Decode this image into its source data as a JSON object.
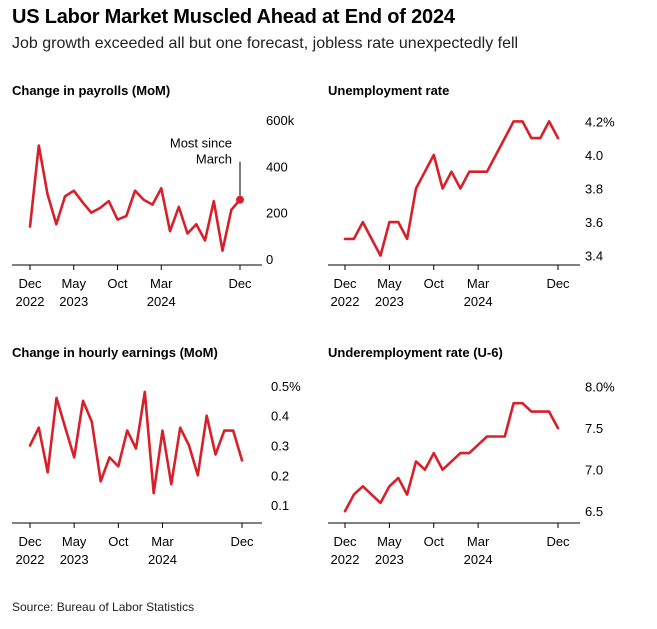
{
  "header": {
    "title": "US Labor Market Muscled Ahead at End of 2024",
    "subtitle": "Job growth exceeded all but one forecast, jobless rate unexpectedly fell"
  },
  "footer": {
    "source": "Source: Bureau of Labor Statistics"
  },
  "colors": {
    "series": "#d7202a",
    "axis": "#000000"
  },
  "chart_data": [
    {
      "type": "line",
      "title": "Change in payrolls (MoM)",
      "x": [
        "2022-12",
        "2023-01",
        "2023-02",
        "2023-03",
        "2023-04",
        "2023-05",
        "2023-06",
        "2023-07",
        "2023-08",
        "2023-09",
        "2023-10",
        "2023-11",
        "2023-12",
        "2024-01",
        "2024-02",
        "2024-03",
        "2024-04",
        "2024-05",
        "2024-06",
        "2024-07",
        "2024-08",
        "2024-09",
        "2024-10",
        "2024-11",
        "2024-12"
      ],
      "series": [
        {
          "values": [
            140,
            490,
            280,
            150,
            270,
            295,
            245,
            200,
            220,
            250,
            170,
            185,
            295,
            255,
            235,
            305,
            120,
            225,
            110,
            150,
            80,
            250,
            36,
            212,
            256
          ]
        }
      ],
      "ylim": [
        0,
        600
      ],
      "yticks": [
        "0",
        "200",
        "400",
        "600k"
      ],
      "ytick_values": [
        0,
        200,
        400,
        600
      ],
      "xtick_labels": [
        [
          "Dec",
          "2022"
        ],
        [
          "May",
          "2023"
        ],
        [
          "Oct",
          ""
        ],
        [
          "Mar",
          "2024"
        ],
        [
          "Dec",
          ""
        ]
      ],
      "xtick_index": [
        0,
        5,
        10,
        15,
        24
      ],
      "annotation": {
        "lines": [
          "Most since",
          "March"
        ],
        "index": 24
      }
    },
    {
      "type": "line",
      "title": "Unemployment rate",
      "x": [
        "2022-12",
        "2023-01",
        "2023-02",
        "2023-03",
        "2023-04",
        "2023-05",
        "2023-06",
        "2023-07",
        "2023-08",
        "2023-09",
        "2023-10",
        "2023-11",
        "2023-12",
        "2024-01",
        "2024-02",
        "2024-03",
        "2024-04",
        "2024-05",
        "2024-06",
        "2024-07",
        "2024-08",
        "2024-09",
        "2024-10",
        "2024-11",
        "2024-12"
      ],
      "series": [
        {
          "values": [
            3.5,
            3.5,
            3.6,
            3.5,
            3.4,
            3.6,
            3.6,
            3.5,
            3.8,
            3.9,
            4.0,
            3.8,
            3.9,
            3.8,
            3.9,
            3.9,
            3.9,
            4.0,
            4.1,
            4.2,
            4.2,
            4.1,
            4.1,
            4.2,
            4.1
          ]
        }
      ],
      "ylim": [
        3.38,
        4.22
      ],
      "yticks": [
        "3.4",
        "3.6",
        "3.8",
        "4.0",
        "4.2%"
      ],
      "ytick_values": [
        3.4,
        3.6,
        3.8,
        4.0,
        4.2
      ],
      "xtick_labels": [
        [
          "Dec",
          "2022"
        ],
        [
          "May",
          "2023"
        ],
        [
          "Oct",
          ""
        ],
        [
          "Mar",
          "2024"
        ],
        [
          "Dec",
          ""
        ]
      ],
      "xtick_index": [
        0,
        5,
        10,
        15,
        24
      ]
    },
    {
      "type": "line",
      "title": "Change in hourly earnings (MoM)",
      "x": [
        "2022-12",
        "2023-01",
        "2023-02",
        "2023-03",
        "2023-04",
        "2023-05",
        "2023-06",
        "2023-07",
        "2023-08",
        "2023-09",
        "2023-10",
        "2023-11",
        "2023-12",
        "2024-01",
        "2024-02",
        "2024-03",
        "2024-04",
        "2024-05",
        "2024-06",
        "2024-07",
        "2024-08",
        "2024-09",
        "2024-10",
        "2024-11",
        "2024-12"
      ],
      "series": [
        {
          "values": [
            0.3,
            0.36,
            0.21,
            0.46,
            0.36,
            0.26,
            0.45,
            0.38,
            0.18,
            0.26,
            0.23,
            0.35,
            0.29,
            0.48,
            0.14,
            0.35,
            0.17,
            0.36,
            0.3,
            0.2,
            0.4,
            0.27,
            0.35,
            0.35,
            0.25
          ]
        }
      ],
      "ylim": [
        0.06,
        0.52
      ],
      "yticks": [
        "0.1",
        "0.2",
        "0.3",
        "0.4",
        "0.5%"
      ],
      "ytick_values": [
        0.1,
        0.2,
        0.3,
        0.4,
        0.5
      ],
      "xtick_labels": [
        [
          "Dec",
          "2022"
        ],
        [
          "May",
          "2023"
        ],
        [
          "Oct",
          ""
        ],
        [
          "Mar",
          "2024"
        ],
        [
          "Dec",
          ""
        ]
      ],
      "xtick_index": [
        0,
        5,
        10,
        15,
        24
      ]
    },
    {
      "type": "line",
      "title": "Underemployment rate (U-6)",
      "x": [
        "2022-12",
        "2023-01",
        "2023-02",
        "2023-03",
        "2023-04",
        "2023-05",
        "2023-06",
        "2023-07",
        "2023-08",
        "2023-09",
        "2023-10",
        "2023-11",
        "2023-12",
        "2024-01",
        "2024-02",
        "2024-03",
        "2024-04",
        "2024-05",
        "2024-06",
        "2024-07",
        "2024-08",
        "2024-09",
        "2024-10",
        "2024-11",
        "2024-12"
      ],
      "series": [
        {
          "values": [
            6.5,
            6.7,
            6.8,
            6.7,
            6.6,
            6.8,
            6.9,
            6.7,
            7.1,
            7.0,
            7.2,
            7.0,
            7.1,
            7.2,
            7.2,
            7.3,
            7.4,
            7.4,
            7.4,
            7.8,
            7.8,
            7.7,
            7.7,
            7.7,
            7.5
          ]
        }
      ],
      "ylim": [
        6.43,
        8.08
      ],
      "yticks": [
        "6.5",
        "7.0",
        "7.5",
        "8.0%"
      ],
      "ytick_values": [
        6.5,
        7.0,
        7.5,
        8.0
      ],
      "xtick_labels": [
        [
          "Dec",
          "2022"
        ],
        [
          "May",
          "2023"
        ],
        [
          "Oct",
          ""
        ],
        [
          "Mar",
          "2024"
        ],
        [
          "Dec",
          ""
        ]
      ],
      "xtick_index": [
        0,
        5,
        10,
        15,
        24
      ]
    }
  ]
}
